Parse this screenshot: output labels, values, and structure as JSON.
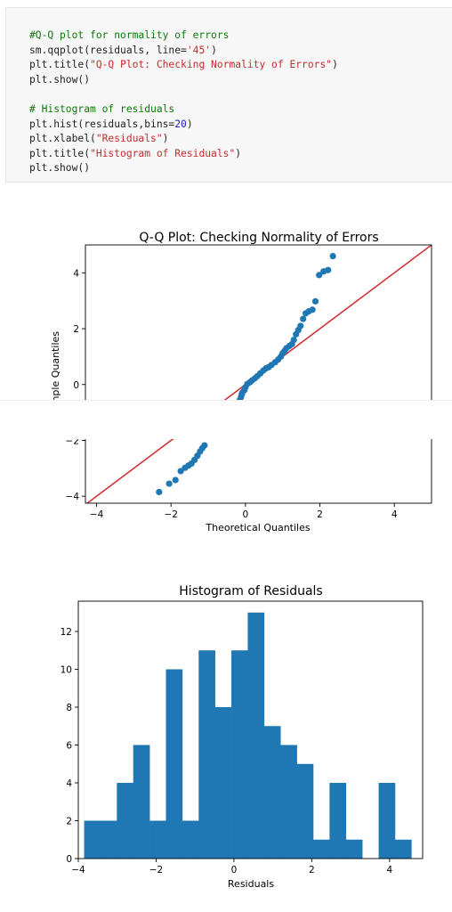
{
  "code": {
    "lines": [
      [
        {
          "t": "#Q-Q plot for normality of errors",
          "c": "comment"
        }
      ],
      [
        {
          "t": "sm.qqplot(residuals, line=",
          "c": ""
        },
        {
          "t": "'45'",
          "c": "str"
        },
        {
          "t": ")",
          "c": ""
        }
      ],
      [
        {
          "t": "plt.title(",
          "c": ""
        },
        {
          "t": "\"Q-Q Plot: Checking Normality of Errors\"",
          "c": "str"
        },
        {
          "t": ")",
          "c": ""
        }
      ],
      [
        {
          "t": "plt.show()",
          "c": ""
        }
      ],
      [
        {
          "t": "",
          "c": ""
        }
      ],
      [
        {
          "t": "# Histogram of residuals",
          "c": "comment"
        }
      ],
      [
        {
          "t": "plt.hist(residuals,bins=",
          "c": ""
        },
        {
          "t": "20",
          "c": "num"
        },
        {
          "t": ")",
          "c": ""
        }
      ],
      [
        {
          "t": "plt.xlabel(",
          "c": ""
        },
        {
          "t": "\"Residuals\"",
          "c": "str"
        },
        {
          "t": ")",
          "c": ""
        }
      ],
      [
        {
          "t": "plt.title(",
          "c": ""
        },
        {
          "t": "\"Histogram of Residuals\"",
          "c": "str"
        },
        {
          "t": ")",
          "c": ""
        }
      ],
      [
        {
          "t": "plt.show()",
          "c": ""
        }
      ]
    ]
  },
  "colors": {
    "points": "#1f77b4",
    "ref_line": "#d62728",
    "bars": "#1f77b4"
  },
  "chart_data": [
    {
      "type": "scatter",
      "title": "Q-Q Plot: Checking Normality of Errors",
      "xlabel": "Theoretical Quantiles",
      "ylabel": "Sample Quantiles",
      "ylabel_visible": "nple Quantiles",
      "xlim": [
        -4.3,
        5.0
      ],
      "ylim": [
        -4.25,
        5.0
      ],
      "xticks": [
        -4,
        -2,
        0,
        2,
        4
      ],
      "yticks": [
        -4,
        -2,
        0,
        2,
        4
      ],
      "reference_line": "45-degree",
      "grid": false,
      "points": [
        [
          -2.32,
          -3.85
        ],
        [
          -2.05,
          -3.55
        ],
        [
          -1.88,
          -3.42
        ],
        [
          -1.74,
          -3.1
        ],
        [
          -1.62,
          -2.98
        ],
        [
          -1.53,
          -2.9
        ],
        [
          -1.45,
          -2.83
        ],
        [
          -1.37,
          -2.7
        ],
        [
          -1.29,
          -2.55
        ],
        [
          -1.22,
          -2.4
        ],
        [
          -1.16,
          -2.28
        ],
        [
          -1.1,
          -2.18
        ],
        [
          -0.15,
          -0.55
        ],
        [
          -0.12,
          -0.45
        ],
        [
          -0.1,
          -0.35
        ],
        [
          -0.08,
          -0.28
        ],
        [
          -0.03,
          -0.2
        ],
        [
          0.0,
          -0.1
        ],
        [
          0.05,
          0.02
        ],
        [
          0.12,
          0.08
        ],
        [
          0.18,
          0.15
        ],
        [
          0.25,
          0.22
        ],
        [
          0.32,
          0.3
        ],
        [
          0.4,
          0.4
        ],
        [
          0.48,
          0.5
        ],
        [
          0.55,
          0.58
        ],
        [
          0.62,
          0.62
        ],
        [
          0.7,
          0.7
        ],
        [
          0.8,
          0.8
        ],
        [
          0.88,
          0.9
        ],
        [
          0.95,
          1.0
        ],
        [
          1.0,
          1.12
        ],
        [
          1.05,
          1.2
        ],
        [
          1.1,
          1.3
        ],
        [
          1.18,
          1.38
        ],
        [
          1.25,
          1.45
        ],
        [
          1.3,
          1.6
        ],
        [
          1.36,
          1.8
        ],
        [
          1.42,
          1.95
        ],
        [
          1.48,
          2.1
        ],
        [
          1.55,
          2.35
        ],
        [
          1.62,
          2.55
        ],
        [
          1.7,
          2.62
        ],
        [
          1.8,
          2.68
        ],
        [
          1.88,
          2.98
        ],
        [
          1.98,
          3.92
        ],
        [
          2.1,
          4.05
        ],
        [
          2.22,
          4.1
        ],
        [
          2.35,
          4.6
        ]
      ]
    },
    {
      "type": "bar",
      "title": "Histogram of Residuals",
      "xlabel": "Residuals",
      "ylabel": "",
      "xlim": [
        -4.0,
        4.85
      ],
      "ylim": [
        0,
        13.6
      ],
      "xticks": [
        -4,
        -2,
        0,
        2,
        4
      ],
      "yticks": [
        0,
        2,
        4,
        6,
        8,
        10,
        12
      ],
      "bin_start": -3.85,
      "bin_width": 0.4205,
      "values": [
        2,
        2,
        4,
        6,
        2,
        10,
        2,
        11,
        8,
        11,
        13,
        7,
        6,
        5,
        1,
        4,
        1,
        0,
        4,
        1
      ]
    }
  ]
}
